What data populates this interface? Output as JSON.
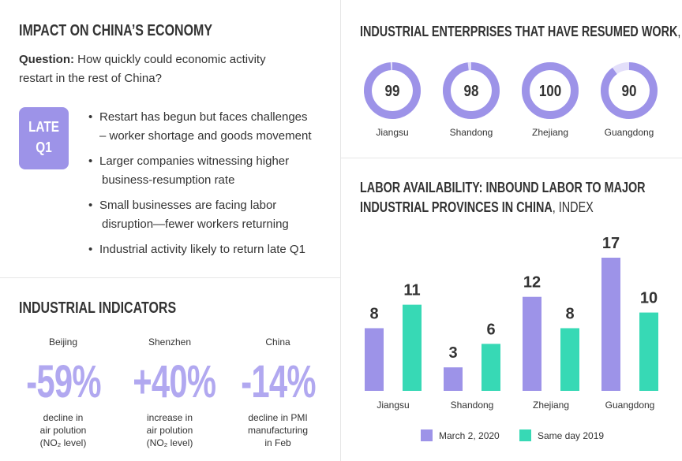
{
  "economy": {
    "title": "IMPACT ON CHINA’S ECONOMY",
    "question_label": "Question:",
    "question_lines": [
      "How quickly could economic activity",
      "restart  in the rest of China?"
    ],
    "badge": [
      "LATE",
      "Q1"
    ],
    "bullets": [
      [
        "Restart has begun but faces challenges",
        "– worker shortage and goods movement"
      ],
      [
        "Larger companies witnessing higher",
        "business-resumption rate"
      ],
      [
        "Small businesses are facing labor",
        "disruption—fewer workers returning"
      ],
      [
        "Industrial activity likely to return late Q1"
      ]
    ]
  },
  "indicators": {
    "title": "INDUSTRIAL INDICATORS",
    "items": [
      {
        "place": "Beijing",
        "value": "-59%",
        "description": [
          "decline in",
          "air polution",
          "(NO₂ level)"
        ]
      },
      {
        "place": "Shenzhen",
        "value": "+40%",
        "description": [
          "increase in",
          "air polution",
          "(NO₂ level)"
        ]
      },
      {
        "place": "China",
        "value": "-14%",
        "description": [
          "decline in PMI",
          "manufacturing",
          "in Feb"
        ]
      }
    ]
  },
  "chart_data": [
    {
      "type": "donut",
      "title": "INDUSTRIAL ENTERPRISES THAT HAVE RESUMED WORK",
      "title_unit": ", %",
      "categories": [
        "Jiangsu",
        "Shandong",
        "Zhejiang",
        "Guangdong"
      ],
      "values": [
        99,
        98,
        100,
        90
      ],
      "ylim": [
        0,
        100
      ],
      "color": "#9d93e8"
    },
    {
      "type": "bar",
      "title": "LABOR AVAILABILITY: INBOUND LABOR TO MAJOR INDUSTRIAL PROVINCES IN CHINA",
      "title_unit": ", INDEX",
      "categories": [
        "Jiangsu",
        "Shandong",
        "Zhejiang",
        "Guangdong"
      ],
      "series": [
        {
          "name": "March 2, 2020",
          "color": "#9d93e8",
          "values": [
            8,
            3,
            12,
            17
          ]
        },
        {
          "name": "Same day 2019",
          "color": "#37d9b5",
          "values": [
            11,
            6,
            8,
            10
          ]
        }
      ],
      "ylim": [
        0,
        17
      ],
      "legend": "bottom"
    }
  ]
}
